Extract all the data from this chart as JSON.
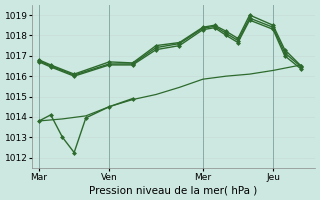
{
  "background_color": "#cce8e0",
  "grid_color": "#b8d8d0",
  "line_color": "#2d6a2d",
  "xlabel": "Pression niveau de la mer( hPa )",
  "ylim": [
    1011.5,
    1019.5
  ],
  "yticks": [
    1012,
    1013,
    1014,
    1015,
    1016,
    1017,
    1018,
    1019
  ],
  "xtick_labels": [
    "Mar",
    "Ven",
    "Mer",
    "Jeu"
  ],
  "xtick_positions": [
    0,
    3,
    7,
    10
  ],
  "xlim": [
    -0.3,
    11.8
  ],
  "figsize": [
    3.2,
    2.0
  ],
  "dpi": 100,
  "line1_x": [
    0,
    0.5,
    1.5,
    3,
    4,
    5,
    6,
    7,
    7.5,
    8,
    8.5,
    9,
    10,
    10.5,
    11.2
  ],
  "line1_y": [
    1016.8,
    1016.55,
    1016.1,
    1016.7,
    1016.65,
    1017.5,
    1017.65,
    1018.4,
    1018.5,
    1018.2,
    1017.85,
    1019.0,
    1018.5,
    1017.3,
    1016.5
  ],
  "line2_x": [
    0,
    0.5,
    1.5,
    3,
    4,
    5,
    6,
    7,
    7.5,
    8,
    8.5,
    9,
    10,
    10.5,
    11.2
  ],
  "line2_y": [
    1016.75,
    1016.5,
    1016.05,
    1016.6,
    1016.6,
    1017.4,
    1017.6,
    1018.35,
    1018.45,
    1018.1,
    1017.75,
    1018.85,
    1018.4,
    1017.15,
    1016.45
  ],
  "line3_x": [
    0,
    0.5,
    1.5,
    3,
    4,
    5,
    6,
    7,
    7.5,
    8,
    8.5,
    9,
    10,
    10.5,
    11.2
  ],
  "line3_y": [
    1016.7,
    1016.45,
    1016.0,
    1016.55,
    1016.55,
    1017.3,
    1017.5,
    1018.28,
    1018.38,
    1018.0,
    1017.65,
    1018.75,
    1018.3,
    1017.0,
    1016.35
  ],
  "line4_x": [
    0,
    1,
    2,
    3,
    4,
    5,
    6,
    7,
    8,
    9,
    10,
    11.2
  ],
  "line4_y": [
    1013.8,
    1013.9,
    1014.05,
    1014.5,
    1014.85,
    1015.1,
    1015.45,
    1015.85,
    1016.0,
    1016.1,
    1016.28,
    1016.55
  ],
  "line5_x": [
    0,
    0.5,
    1.0,
    1.5,
    2,
    3,
    4
  ],
  "line5_y": [
    1013.8,
    1014.1,
    1013.0,
    1012.25,
    1013.95,
    1014.5,
    1014.9
  ]
}
